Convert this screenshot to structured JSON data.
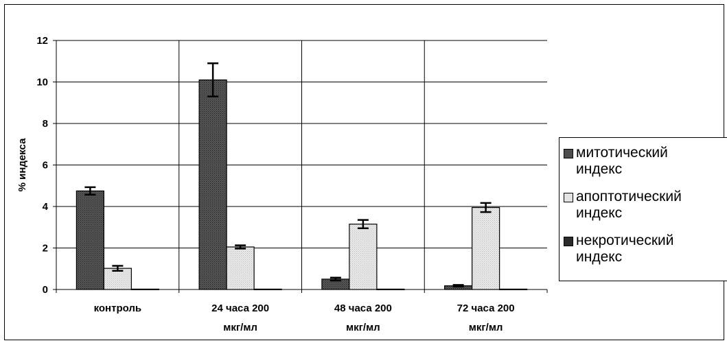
{
  "chart_data": {
    "type": "bar",
    "title": "",
    "xlabel": "",
    "ylabel": "% индекса",
    "ylim": [
      0,
      12
    ],
    "yticks": [
      0,
      2,
      4,
      6,
      8,
      10,
      12
    ],
    "grid": true,
    "legend_position": "right",
    "categories": [
      [
        "контроль"
      ],
      [
        "24 часа 200",
        "мкг/мл"
      ],
      [
        "48 часа 200",
        "мкг/мл"
      ],
      [
        "72 часа 200",
        "мкг/мл"
      ]
    ],
    "series": [
      {
        "name": "митотический индекс",
        "legend_lines": [
          "митотический",
          "индекс"
        ],
        "values": [
          4.75,
          10.1,
          0.5,
          0.18
        ],
        "errors": [
          0.18,
          0.8,
          0.07,
          0.04
        ],
        "color": "#4d4d4d"
      },
      {
        "name": "апоптотический индекс",
        "legend_lines": [
          "апоптотический",
          "индекс"
        ],
        "values": [
          1.02,
          2.05,
          3.15,
          3.95
        ],
        "errors": [
          0.12,
          0.08,
          0.2,
          0.22
        ],
        "color": "#e3e3e3"
      },
      {
        "name": "некротический индекс",
        "legend_lines": [
          "некротический",
          "индекс"
        ],
        "values": [
          0.02,
          0.02,
          0.02,
          0.02
        ],
        "errors": [
          0,
          0,
          0,
          0
        ],
        "color": "#2b2b2b"
      }
    ]
  }
}
